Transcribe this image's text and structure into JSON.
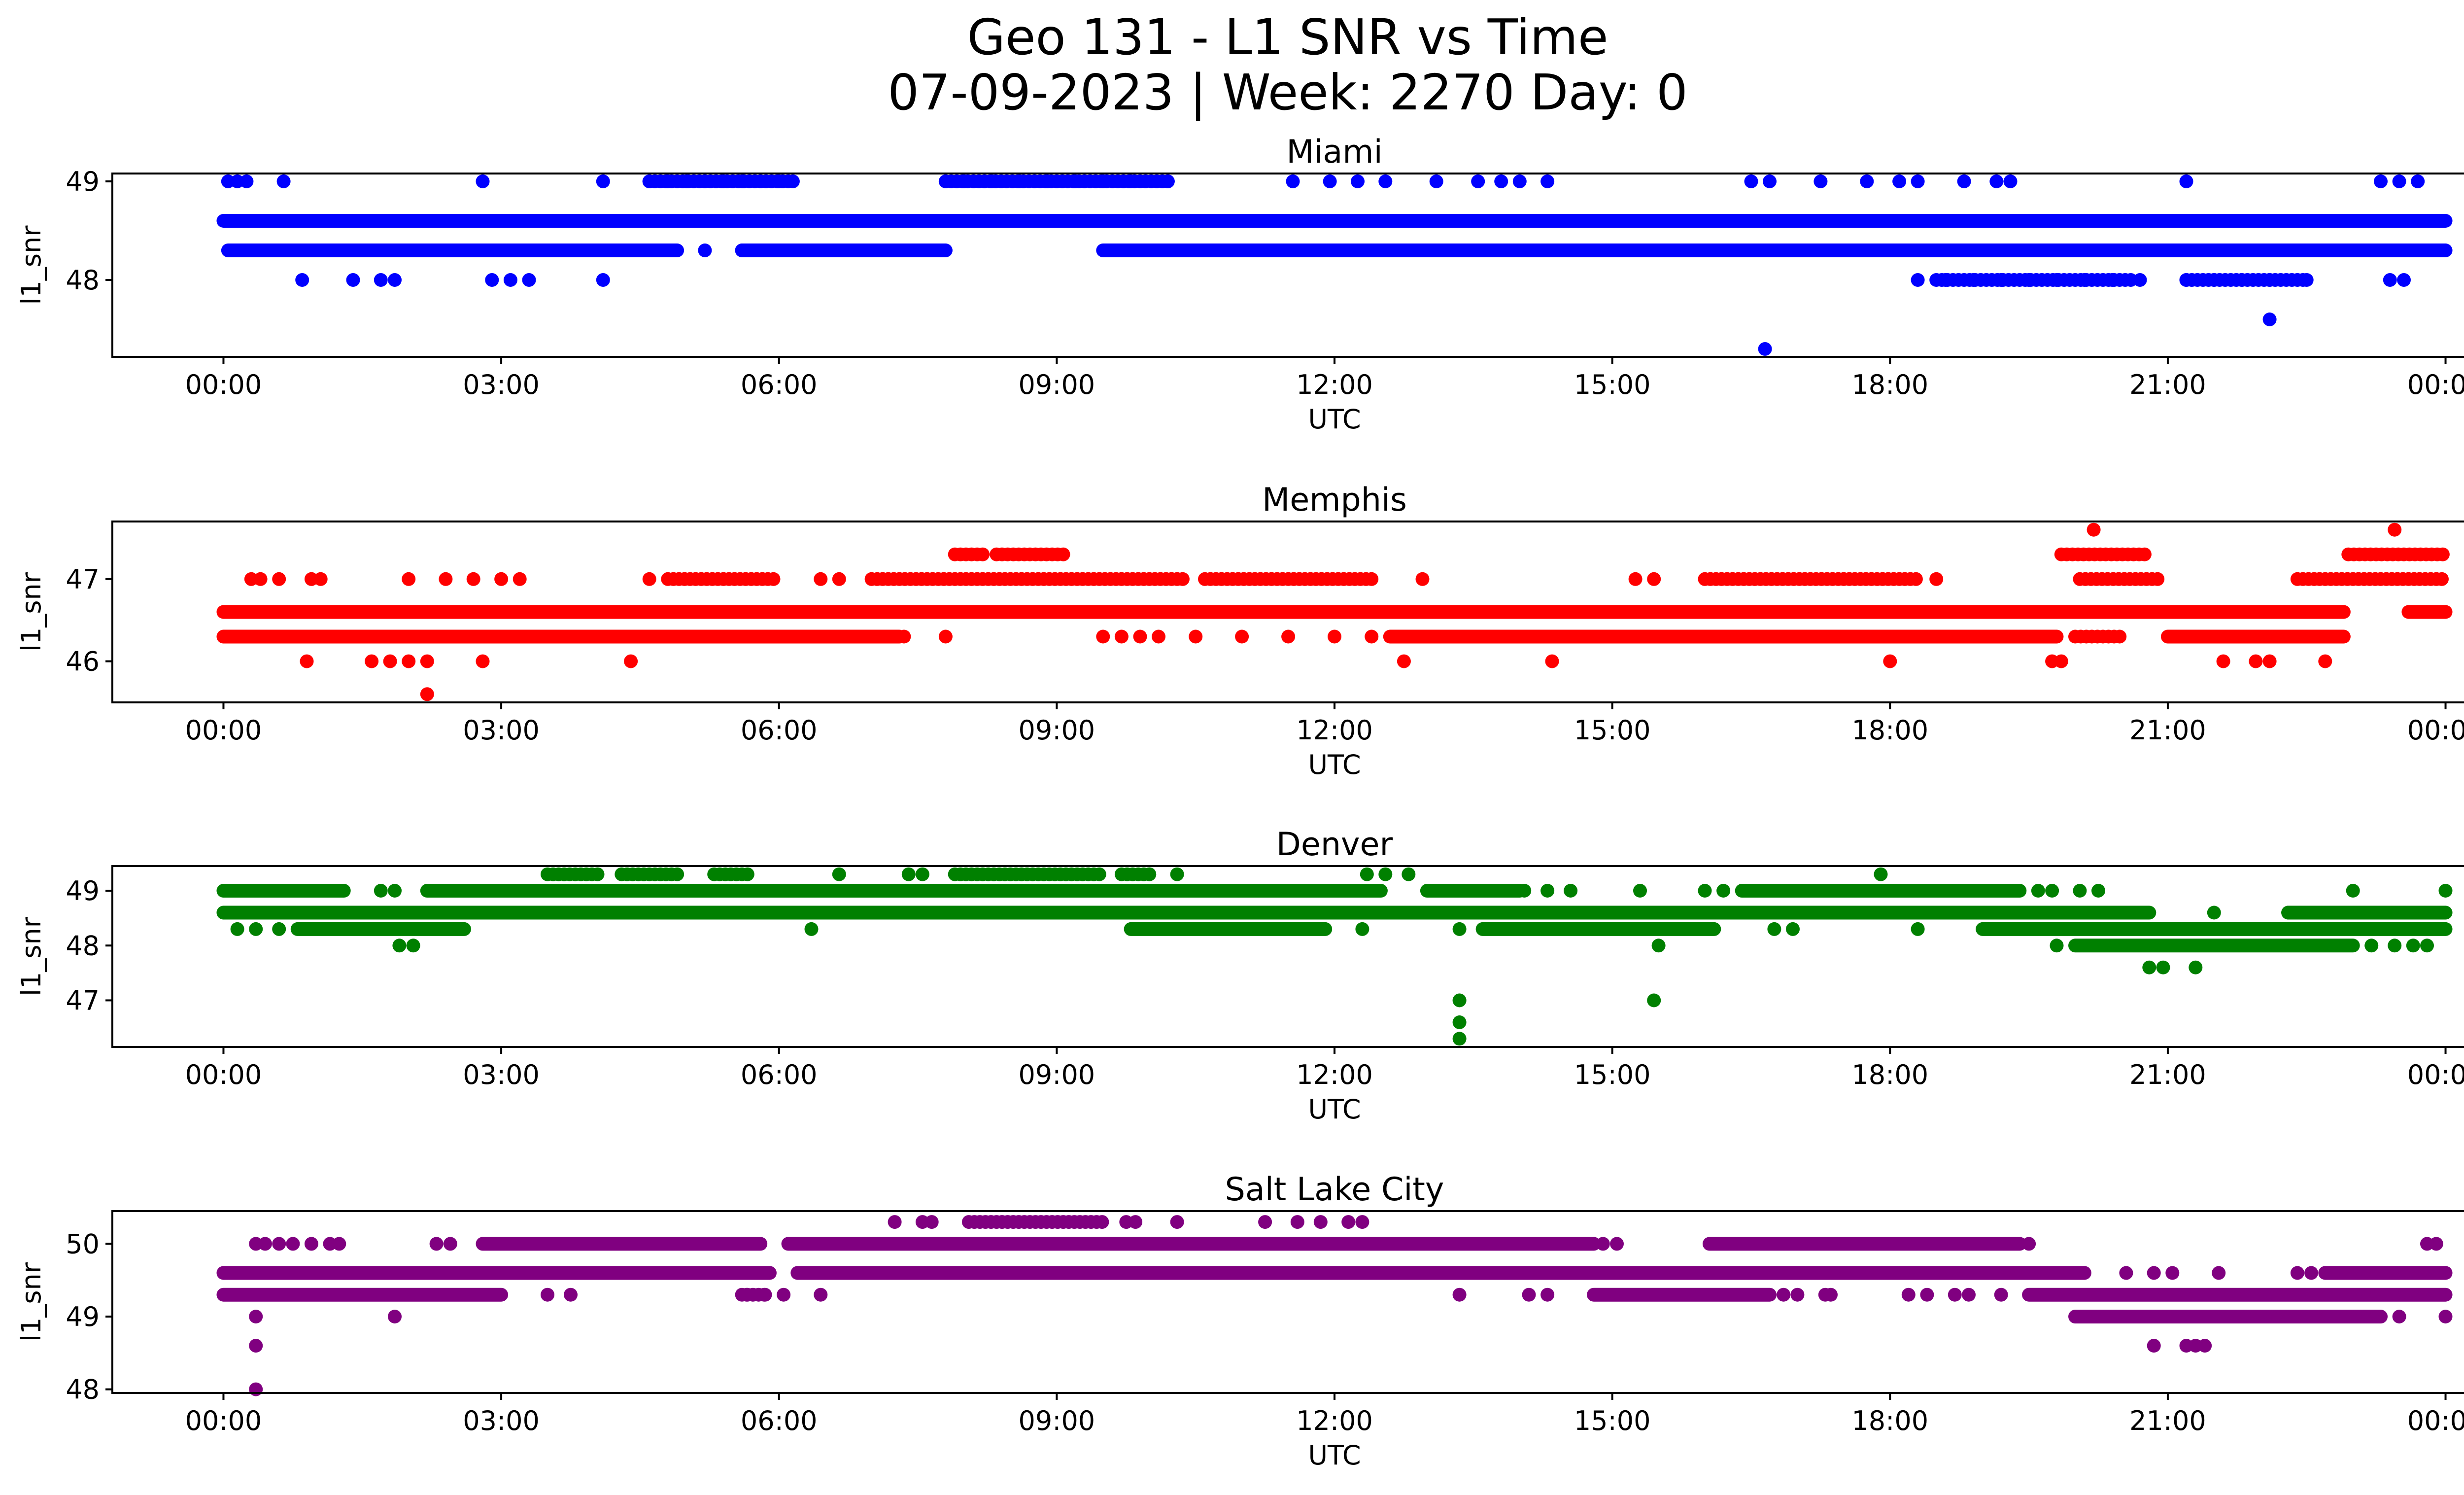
{
  "figure": {
    "title_line1": "Geo 131 - L1 SNR vs Time",
    "title_line2": "07-09-2023 | Week: 2270 Day: 0"
  },
  "chart_data": [
    {
      "type": "scatter",
      "title": "Miami",
      "xlabel": "UTC",
      "ylabel": "l1_snr",
      "color": "#0000ff",
      "x_ticks": [
        "00:00",
        "03:00",
        "06:00",
        "09:00",
        "12:00",
        "15:00",
        "18:00",
        "21:00",
        "00:00"
      ],
      "y_ticks": [
        48,
        49
      ],
      "xlim_hours": [
        -1.2,
        25.2
      ],
      "ylim": [
        47.22,
        49.08
      ],
      "bands": [
        {
          "y": 48.6,
          "segments": [
            [
              0.0,
              24.0
            ]
          ]
        },
        {
          "y": 48.3,
          "segments": [
            [
              0.05,
              4.9
            ],
            [
              5.6,
              7.8
            ],
            [
              9.5,
              24.0
            ]
          ]
        }
      ],
      "points": [
        [
          0.05,
          49.0
        ],
        [
          0.15,
          49.0
        ],
        [
          0.25,
          49.0
        ],
        [
          0.65,
          49.0
        ],
        [
          2.8,
          49.0
        ],
        [
          4.1,
          49.0
        ],
        [
          4.6,
          49.0
        ],
        [
          4.8,
          49.0
        ],
        [
          5.0,
          49.0
        ],
        [
          5.2,
          49.0
        ],
        [
          5.4,
          49.0
        ],
        [
          5.6,
          49.0
        ],
        [
          5.8,
          49.0
        ],
        [
          6.0,
          49.0
        ],
        [
          6.15,
          49.0
        ],
        [
          7.8,
          49.0
        ],
        [
          8.0,
          49.0
        ],
        [
          8.3,
          49.0
        ],
        [
          8.6,
          49.0
        ],
        [
          8.9,
          49.0
        ],
        [
          9.2,
          49.0
        ],
        [
          9.5,
          49.0
        ],
        [
          9.8,
          49.0
        ],
        [
          10.2,
          49.0
        ],
        [
          11.55,
          49.0
        ],
        [
          11.95,
          49.0
        ],
        [
          12.25,
          49.0
        ],
        [
          12.55,
          49.0
        ],
        [
          13.1,
          49.0
        ],
        [
          13.55,
          49.0
        ],
        [
          13.8,
          49.0
        ],
        [
          14.0,
          49.0
        ],
        [
          14.3,
          49.0
        ],
        [
          16.5,
          49.0
        ],
        [
          16.7,
          49.0
        ],
        [
          17.25,
          49.0
        ],
        [
          17.75,
          49.0
        ],
        [
          18.1,
          49.0
        ],
        [
          18.3,
          49.0
        ],
        [
          18.8,
          49.0
        ],
        [
          19.15,
          49.0
        ],
        [
          19.3,
          49.0
        ],
        [
          21.2,
          49.0
        ],
        [
          23.3,
          49.0
        ],
        [
          23.5,
          49.0
        ],
        [
          23.7,
          49.0
        ],
        [
          5.2,
          48.3
        ],
        [
          5.6,
          48.3
        ],
        [
          0.85,
          48.0
        ],
        [
          1.4,
          48.0
        ],
        [
          1.7,
          48.0
        ],
        [
          1.85,
          48.0
        ],
        [
          2.9,
          48.0
        ],
        [
          3.1,
          48.0
        ],
        [
          3.3,
          48.0
        ],
        [
          4.1,
          48.0
        ],
        [
          18.3,
          48.0
        ],
        [
          18.6,
          48.0
        ],
        [
          18.9,
          48.0
        ],
        [
          19.2,
          48.0
        ],
        [
          19.5,
          48.0
        ],
        [
          19.8,
          48.0
        ],
        [
          20.1,
          48.0
        ],
        [
          20.4,
          48.0
        ],
        [
          20.7,
          48.0
        ],
        [
          21.2,
          48.0
        ],
        [
          21.5,
          48.0
        ],
        [
          21.8,
          48.0
        ],
        [
          22.1,
          48.0
        ],
        [
          22.5,
          48.0
        ],
        [
          23.4,
          48.0
        ],
        [
          23.55,
          48.0
        ],
        [
          22.1,
          47.6
        ],
        [
          16.65,
          47.3
        ]
      ],
      "clusters": [
        {
          "y": 49.0,
          "from": 4.6,
          "to": 6.15
        },
        {
          "y": 49.0,
          "from": 7.8,
          "to": 10.2
        },
        {
          "y": 48.0,
          "from": 18.5,
          "to": 20.6
        },
        {
          "y": 48.0,
          "from": 21.2,
          "to": 22.5
        }
      ]
    },
    {
      "type": "scatter",
      "title": "Memphis",
      "xlabel": "UTC",
      "ylabel": "l1_snr",
      "color": "#ff0000",
      "x_ticks": [
        "00:00",
        "03:00",
        "06:00",
        "09:00",
        "12:00",
        "15:00",
        "18:00",
        "21:00",
        "00:00"
      ],
      "y_ticks": [
        46,
        47
      ],
      "xlim_hours": [
        -1.2,
        25.2
      ],
      "ylim": [
        45.5,
        47.7
      ],
      "bands": [
        {
          "y": 46.6,
          "segments": [
            [
              0.0,
              22.9
            ],
            [
              23.6,
              24.0
            ]
          ]
        },
        {
          "y": 46.3,
          "segments": [
            [
              0.0,
              7.3
            ],
            [
              12.6,
              19.8
            ],
            [
              21.0,
              22.9
            ]
          ]
        }
      ],
      "points": [
        [
          0.3,
          47.0
        ],
        [
          0.4,
          47.0
        ],
        [
          0.6,
          47.0
        ],
        [
          0.95,
          47.0
        ],
        [
          1.05,
          47.0
        ],
        [
          2.0,
          47.0
        ],
        [
          2.4,
          47.0
        ],
        [
          2.7,
          47.0
        ],
        [
          3.0,
          47.0
        ],
        [
          3.2,
          47.0
        ],
        [
          4.6,
          47.0
        ],
        [
          6.45,
          47.0
        ],
        [
          6.65,
          47.0
        ],
        [
          12.95,
          47.0
        ],
        [
          15.25,
          47.0
        ],
        [
          15.45,
          47.0
        ],
        [
          18.5,
          47.0
        ],
        [
          7.35,
          46.3
        ],
        [
          7.8,
          46.3
        ],
        [
          9.5,
          46.3
        ],
        [
          9.7,
          46.3
        ],
        [
          9.9,
          46.3
        ],
        [
          10.1,
          46.3
        ],
        [
          10.5,
          46.3
        ],
        [
          11.0,
          46.3
        ],
        [
          11.5,
          46.3
        ],
        [
          12.0,
          46.3
        ],
        [
          12.4,
          46.3
        ],
        [
          20.5,
          46.6
        ],
        [
          20.7,
          46.6
        ],
        [
          0.9,
          46.0
        ],
        [
          1.6,
          46.0
        ],
        [
          1.8,
          46.0
        ],
        [
          2.0,
          46.0
        ],
        [
          2.2,
          46.0
        ],
        [
          2.8,
          46.0
        ],
        [
          4.4,
          46.0
        ],
        [
          12.75,
          46.0
        ],
        [
          14.35,
          46.0
        ],
        [
          18.0,
          46.0
        ],
        [
          19.75,
          46.0
        ],
        [
          19.85,
          46.0
        ],
        [
          21.6,
          46.0
        ],
        [
          21.95,
          46.0
        ],
        [
          22.1,
          46.0
        ],
        [
          22.7,
          46.0
        ],
        [
          2.2,
          45.6
        ],
        [
          20.2,
          47.6
        ],
        [
          23.45,
          47.6
        ],
        [
          23.7,
          46.6
        ],
        [
          23.85,
          46.6
        ]
      ],
      "clusters": [
        {
          "y": 47.0,
          "from": 4.8,
          "to": 5.95
        },
        {
          "y": 47.0,
          "from": 7.0,
          "to": 10.4
        },
        {
          "y": 47.0,
          "from": 10.6,
          "to": 12.4
        },
        {
          "y": 47.0,
          "from": 16.0,
          "to": 18.3
        },
        {
          "y": 47.0,
          "from": 20.05,
          "to": 20.9
        },
        {
          "y": 47.0,
          "from": 22.4,
          "to": 24.0
        },
        {
          "y": 47.3,
          "from": 7.9,
          "to": 8.2
        },
        {
          "y": 47.3,
          "from": 8.35,
          "to": 9.1
        },
        {
          "y": 47.3,
          "from": 19.85,
          "to": 20.75
        },
        {
          "y": 47.3,
          "from": 22.95,
          "to": 24.0
        },
        {
          "y": 46.3,
          "from": 20.0,
          "to": 20.5
        }
      ]
    },
    {
      "type": "scatter",
      "title": "Denver",
      "xlabel": "UTC",
      "ylabel": "l1_snr",
      "color": "#008000",
      "x_ticks": [
        "00:00",
        "03:00",
        "06:00",
        "09:00",
        "12:00",
        "15:00",
        "18:00",
        "21:00",
        "00:00"
      ],
      "y_ticks": [
        47,
        48,
        49
      ],
      "xlim_hours": [
        -1.2,
        25.2
      ],
      "ylim": [
        46.15,
        49.45
      ],
      "bands": [
        {
          "y": 49.0,
          "segments": [
            [
              0.0,
              1.3
            ],
            [
              2.2,
              12.5
            ],
            [
              13.0,
              14.0
            ],
            [
              16.4,
              19.4
            ]
          ]
        },
        {
          "y": 48.6,
          "segments": [
            [
              0.0,
              20.8
            ],
            [
              22.3,
              24.0
            ]
          ]
        },
        {
          "y": 48.3,
          "segments": [
            [
              0.8,
              2.6
            ],
            [
              9.8,
              11.9
            ],
            [
              13.6,
              16.1
            ],
            [
              19.0,
              24.0
            ]
          ]
        },
        {
          "y": 48.0,
          "segments": [
            [
              20.0,
              23.0
            ]
          ]
        }
      ],
      "points": [
        [
          1.7,
          49.0
        ],
        [
          1.85,
          49.0
        ],
        [
          14.05,
          49.0
        ],
        [
          14.3,
          49.0
        ],
        [
          14.55,
          49.0
        ],
        [
          15.3,
          49.0
        ],
        [
          16.0,
          49.0
        ],
        [
          16.2,
          49.0
        ],
        [
          19.6,
          49.0
        ],
        [
          19.75,
          49.0
        ],
        [
          20.05,
          49.0
        ],
        [
          20.25,
          49.0
        ],
        [
          23.0,
          49.0
        ],
        [
          24.0,
          49.0
        ],
        [
          12.35,
          49.3
        ],
        [
          12.55,
          49.3
        ],
        [
          12.8,
          49.3
        ],
        [
          6.65,
          49.3
        ],
        [
          7.4,
          49.3
        ],
        [
          7.55,
          49.3
        ],
        [
          10.0,
          49.3
        ],
        [
          10.3,
          49.3
        ],
        [
          17.9,
          49.3
        ],
        [
          0.15,
          48.3
        ],
        [
          0.35,
          48.3
        ],
        [
          0.6,
          48.3
        ],
        [
          6.35,
          48.3
        ],
        [
          12.3,
          48.3
        ],
        [
          13.35,
          48.3
        ],
        [
          16.75,
          48.3
        ],
        [
          16.95,
          48.3
        ],
        [
          18.3,
          48.3
        ],
        [
          21.5,
          48.6
        ],
        [
          22.3,
          48.6
        ],
        [
          1.9,
          48.0
        ],
        [
          2.05,
          48.0
        ],
        [
          15.5,
          48.0
        ],
        [
          19.8,
          48.0
        ],
        [
          23.2,
          48.0
        ],
        [
          23.45,
          48.0
        ],
        [
          23.65,
          48.0
        ],
        [
          23.8,
          48.0
        ],
        [
          20.8,
          47.6
        ],
        [
          20.95,
          47.6
        ],
        [
          21.3,
          47.6
        ],
        [
          13.35,
          47.0
        ],
        [
          15.45,
          47.0
        ],
        [
          13.35,
          46.6
        ],
        [
          13.35,
          46.3
        ]
      ],
      "clusters": [
        {
          "y": 49.3,
          "from": 3.5,
          "to": 4.05
        },
        {
          "y": 49.3,
          "from": 4.3,
          "to": 4.95
        },
        {
          "y": 49.3,
          "from": 5.3,
          "to": 5.7
        },
        {
          "y": 49.3,
          "from": 7.9,
          "to": 9.5
        },
        {
          "y": 49.3,
          "from": 9.7,
          "to": 10.0
        }
      ]
    },
    {
      "type": "scatter",
      "title": "Salt Lake City",
      "xlabel": "UTC",
      "ylabel": "l1_snr",
      "color": "#800080",
      "x_ticks": [
        "00:00",
        "03:00",
        "06:00",
        "09:00",
        "12:00",
        "15:00",
        "18:00",
        "21:00",
        "00:00"
      ],
      "y_ticks": [
        48,
        49,
        50
      ],
      "xlim_hours": [
        -1.2,
        25.2
      ],
      "ylim": [
        47.95,
        50.45
      ],
      "bands": [
        {
          "y": 50.0,
          "segments": [
            [
              2.8,
              5.8
            ],
            [
              6.1,
              14.8
            ],
            [
              16.05,
              19.4
            ]
          ]
        },
        {
          "y": 49.6,
          "segments": [
            [
              0.0,
              5.9
            ],
            [
              6.2,
              20.1
            ],
            [
              22.7,
              24.0
            ]
          ]
        },
        {
          "y": 49.3,
          "segments": [
            [
              0.0,
              3.0
            ],
            [
              14.8,
              16.7
            ],
            [
              19.5,
              24.0
            ]
          ]
        },
        {
          "y": 49.0,
          "segments": [
            [
              20.0,
              23.3
            ]
          ]
        }
      ],
      "points": [
        [
          0.35,
          50.0
        ],
        [
          0.45,
          50.0
        ],
        [
          0.6,
          50.0
        ],
        [
          0.75,
          50.0
        ],
        [
          0.95,
          50.0
        ],
        [
          1.15,
          50.0
        ],
        [
          1.25,
          50.0
        ],
        [
          2.3,
          50.0
        ],
        [
          2.45,
          50.0
        ],
        [
          14.9,
          50.0
        ],
        [
          15.05,
          50.0
        ],
        [
          19.5,
          50.0
        ],
        [
          23.8,
          50.0
        ],
        [
          23.9,
          50.0
        ],
        [
          7.25,
          50.3
        ],
        [
          7.55,
          50.3
        ],
        [
          7.65,
          50.3
        ],
        [
          9.75,
          50.3
        ],
        [
          9.85,
          50.3
        ],
        [
          10.3,
          50.3
        ],
        [
          11.25,
          50.3
        ],
        [
          11.6,
          50.3
        ],
        [
          11.85,
          50.3
        ],
        [
          12.15,
          50.3
        ],
        [
          12.3,
          50.3
        ],
        [
          6.25,
          49.6
        ],
        [
          6.45,
          49.6
        ],
        [
          8.75,
          49.6
        ],
        [
          8.85,
          49.6
        ],
        [
          20.55,
          49.6
        ],
        [
          20.85,
          49.6
        ],
        [
          21.05,
          49.6
        ],
        [
          21.55,
          49.6
        ],
        [
          22.4,
          49.6
        ],
        [
          22.55,
          49.6
        ],
        [
          3.5,
          49.3
        ],
        [
          3.75,
          49.3
        ],
        [
          5.65,
          49.3
        ],
        [
          5.85,
          49.3
        ],
        [
          6.05,
          49.3
        ],
        [
          6.45,
          49.3
        ],
        [
          13.35,
          49.3
        ],
        [
          14.1,
          49.3
        ],
        [
          14.3,
          49.3
        ],
        [
          16.85,
          49.3
        ],
        [
          17.0,
          49.3
        ],
        [
          18.2,
          49.3
        ],
        [
          18.4,
          49.3
        ],
        [
          18.7,
          49.3
        ],
        [
          18.85,
          49.3
        ],
        [
          19.2,
          49.3
        ],
        [
          0.35,
          49.0
        ],
        [
          1.85,
          49.0
        ],
        [
          23.5,
          49.0
        ],
        [
          24.0,
          49.0
        ],
        [
          0.35,
          48.6
        ],
        [
          20.85,
          48.6
        ],
        [
          21.2,
          48.6
        ],
        [
          21.3,
          48.6
        ],
        [
          21.4,
          48.6
        ],
        [
          0.35,
          48.0
        ]
      ],
      "clusters": [
        {
          "y": 50.3,
          "from": 8.05,
          "to": 9.5
        },
        {
          "y": 49.3,
          "from": 5.6,
          "to": 5.85
        },
        {
          "y": 49.3,
          "from": 17.3,
          "to": 17.4
        }
      ]
    }
  ]
}
